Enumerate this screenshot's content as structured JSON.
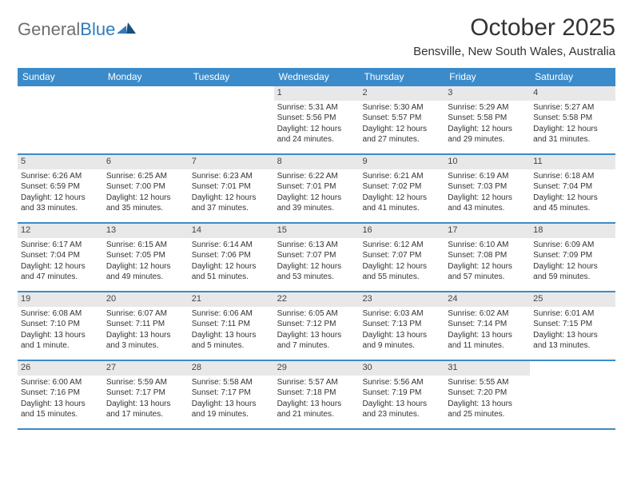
{
  "brand": {
    "general": "General",
    "blue": "Blue"
  },
  "title": "October 2025",
  "location": "Bensville, New South Wales, Australia",
  "colors": {
    "header_bg": "#3b8bca",
    "header_text": "#ffffff",
    "daynum_bg": "#e8e8e8",
    "row_border": "#3b8bca",
    "body_text": "#333333",
    "logo_gray": "#6f6f6f",
    "logo_blue": "#2f7bbf"
  },
  "day_names": [
    "Sunday",
    "Monday",
    "Tuesday",
    "Wednesday",
    "Thursday",
    "Friday",
    "Saturday"
  ],
  "weeks": [
    [
      {
        "n": "",
        "lines": []
      },
      {
        "n": "",
        "lines": []
      },
      {
        "n": "",
        "lines": []
      },
      {
        "n": "1",
        "lines": [
          "Sunrise: 5:31 AM",
          "Sunset: 5:56 PM",
          "Daylight: 12 hours",
          "and 24 minutes."
        ]
      },
      {
        "n": "2",
        "lines": [
          "Sunrise: 5:30 AM",
          "Sunset: 5:57 PM",
          "Daylight: 12 hours",
          "and 27 minutes."
        ]
      },
      {
        "n": "3",
        "lines": [
          "Sunrise: 5:29 AM",
          "Sunset: 5:58 PM",
          "Daylight: 12 hours",
          "and 29 minutes."
        ]
      },
      {
        "n": "4",
        "lines": [
          "Sunrise: 5:27 AM",
          "Sunset: 5:58 PM",
          "Daylight: 12 hours",
          "and 31 minutes."
        ]
      }
    ],
    [
      {
        "n": "5",
        "lines": [
          "Sunrise: 6:26 AM",
          "Sunset: 6:59 PM",
          "Daylight: 12 hours",
          "and 33 minutes."
        ]
      },
      {
        "n": "6",
        "lines": [
          "Sunrise: 6:25 AM",
          "Sunset: 7:00 PM",
          "Daylight: 12 hours",
          "and 35 minutes."
        ]
      },
      {
        "n": "7",
        "lines": [
          "Sunrise: 6:23 AM",
          "Sunset: 7:01 PM",
          "Daylight: 12 hours",
          "and 37 minutes."
        ]
      },
      {
        "n": "8",
        "lines": [
          "Sunrise: 6:22 AM",
          "Sunset: 7:01 PM",
          "Daylight: 12 hours",
          "and 39 minutes."
        ]
      },
      {
        "n": "9",
        "lines": [
          "Sunrise: 6:21 AM",
          "Sunset: 7:02 PM",
          "Daylight: 12 hours",
          "and 41 minutes."
        ]
      },
      {
        "n": "10",
        "lines": [
          "Sunrise: 6:19 AM",
          "Sunset: 7:03 PM",
          "Daylight: 12 hours",
          "and 43 minutes."
        ]
      },
      {
        "n": "11",
        "lines": [
          "Sunrise: 6:18 AM",
          "Sunset: 7:04 PM",
          "Daylight: 12 hours",
          "and 45 minutes."
        ]
      }
    ],
    [
      {
        "n": "12",
        "lines": [
          "Sunrise: 6:17 AM",
          "Sunset: 7:04 PM",
          "Daylight: 12 hours",
          "and 47 minutes."
        ]
      },
      {
        "n": "13",
        "lines": [
          "Sunrise: 6:15 AM",
          "Sunset: 7:05 PM",
          "Daylight: 12 hours",
          "and 49 minutes."
        ]
      },
      {
        "n": "14",
        "lines": [
          "Sunrise: 6:14 AM",
          "Sunset: 7:06 PM",
          "Daylight: 12 hours",
          "and 51 minutes."
        ]
      },
      {
        "n": "15",
        "lines": [
          "Sunrise: 6:13 AM",
          "Sunset: 7:07 PM",
          "Daylight: 12 hours",
          "and 53 minutes."
        ]
      },
      {
        "n": "16",
        "lines": [
          "Sunrise: 6:12 AM",
          "Sunset: 7:07 PM",
          "Daylight: 12 hours",
          "and 55 minutes."
        ]
      },
      {
        "n": "17",
        "lines": [
          "Sunrise: 6:10 AM",
          "Sunset: 7:08 PM",
          "Daylight: 12 hours",
          "and 57 minutes."
        ]
      },
      {
        "n": "18",
        "lines": [
          "Sunrise: 6:09 AM",
          "Sunset: 7:09 PM",
          "Daylight: 12 hours",
          "and 59 minutes."
        ]
      }
    ],
    [
      {
        "n": "19",
        "lines": [
          "Sunrise: 6:08 AM",
          "Sunset: 7:10 PM",
          "Daylight: 13 hours",
          "and 1 minute."
        ]
      },
      {
        "n": "20",
        "lines": [
          "Sunrise: 6:07 AM",
          "Sunset: 7:11 PM",
          "Daylight: 13 hours",
          "and 3 minutes."
        ]
      },
      {
        "n": "21",
        "lines": [
          "Sunrise: 6:06 AM",
          "Sunset: 7:11 PM",
          "Daylight: 13 hours",
          "and 5 minutes."
        ]
      },
      {
        "n": "22",
        "lines": [
          "Sunrise: 6:05 AM",
          "Sunset: 7:12 PM",
          "Daylight: 13 hours",
          "and 7 minutes."
        ]
      },
      {
        "n": "23",
        "lines": [
          "Sunrise: 6:03 AM",
          "Sunset: 7:13 PM",
          "Daylight: 13 hours",
          "and 9 minutes."
        ]
      },
      {
        "n": "24",
        "lines": [
          "Sunrise: 6:02 AM",
          "Sunset: 7:14 PM",
          "Daylight: 13 hours",
          "and 11 minutes."
        ]
      },
      {
        "n": "25",
        "lines": [
          "Sunrise: 6:01 AM",
          "Sunset: 7:15 PM",
          "Daylight: 13 hours",
          "and 13 minutes."
        ]
      }
    ],
    [
      {
        "n": "26",
        "lines": [
          "Sunrise: 6:00 AM",
          "Sunset: 7:16 PM",
          "Daylight: 13 hours",
          "and 15 minutes."
        ]
      },
      {
        "n": "27",
        "lines": [
          "Sunrise: 5:59 AM",
          "Sunset: 7:17 PM",
          "Daylight: 13 hours",
          "and 17 minutes."
        ]
      },
      {
        "n": "28",
        "lines": [
          "Sunrise: 5:58 AM",
          "Sunset: 7:17 PM",
          "Daylight: 13 hours",
          "and 19 minutes."
        ]
      },
      {
        "n": "29",
        "lines": [
          "Sunrise: 5:57 AM",
          "Sunset: 7:18 PM",
          "Daylight: 13 hours",
          "and 21 minutes."
        ]
      },
      {
        "n": "30",
        "lines": [
          "Sunrise: 5:56 AM",
          "Sunset: 7:19 PM",
          "Daylight: 13 hours",
          "and 23 minutes."
        ]
      },
      {
        "n": "31",
        "lines": [
          "Sunrise: 5:55 AM",
          "Sunset: 7:20 PM",
          "Daylight: 13 hours",
          "and 25 minutes."
        ]
      },
      {
        "n": "",
        "lines": []
      }
    ]
  ]
}
